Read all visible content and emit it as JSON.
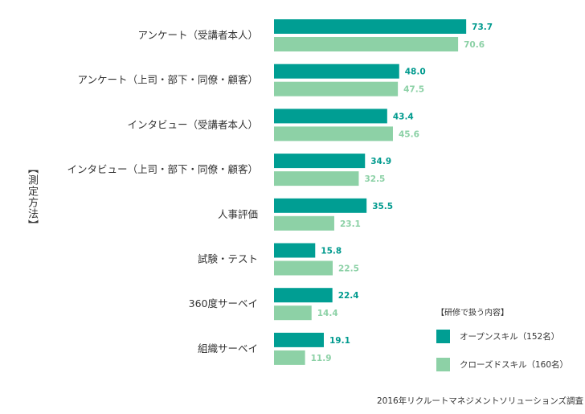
{
  "chart_data": {
    "type": "bar",
    "orientation": "horizontal",
    "axis_title": "【測定方法】",
    "categories": [
      "アンケート（受講者本人）",
      "アンケート（上司・部下・同僚・顧客）",
      "インタビュー（受講者本人）",
      "インタビュー（上司・部下・同僚・顧客）",
      "人事評価",
      "試験・テスト",
      "360度サーベイ",
      "組織サーベイ"
    ],
    "series": [
      {
        "name": "オープンスキル（152名）",
        "color": "#009e93",
        "values": [
          73.7,
          48.0,
          43.4,
          34.9,
          35.5,
          15.8,
          22.4,
          19.1
        ],
        "labels": [
          "73.7",
          "48.0",
          "43.4",
          "34.9",
          "35.5",
          "15.8",
          "22.4",
          "19.1"
        ]
      },
      {
        "name": "クローズドスキル（160名）",
        "color": "#8dd1a6",
        "values": [
          70.6,
          47.5,
          45.6,
          32.5,
          23.1,
          22.5,
          14.4,
          11.9
        ],
        "labels": [
          "70.6",
          "47.5",
          "45.6",
          "32.5",
          "23.1",
          "22.5",
          "14.4",
          "11.9"
        ]
      }
    ],
    "legend_title": "【研修で扱う内容】",
    "legend_position": "bottom-right",
    "xlim": [
      0,
      100
    ],
    "grid": false,
    "source": "2016年リクルートマネジメントソリューションズ調査"
  }
}
